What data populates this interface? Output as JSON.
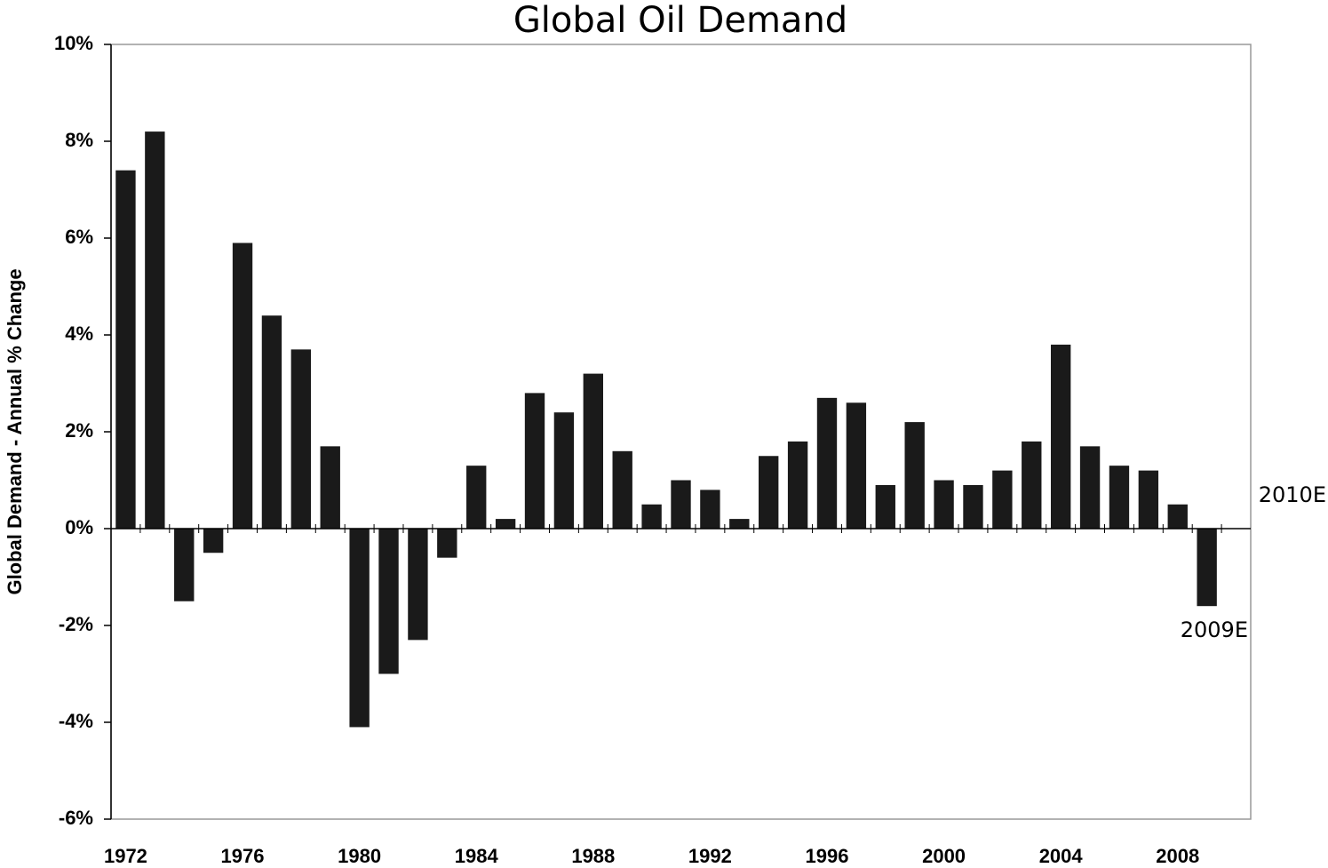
{
  "chart_data": {
    "type": "bar",
    "title": "Global Oil Demand",
    "y_axis_label": "Global Demand - Annual % Change",
    "categories": [
      "1972",
      null,
      null,
      null,
      "1976",
      null,
      null,
      null,
      "1980",
      null,
      null,
      null,
      "1984",
      null,
      null,
      null,
      "1988",
      null,
      null,
      null,
      "1992",
      null,
      null,
      null,
      "1996",
      null,
      null,
      null,
      "2000",
      null,
      null,
      null,
      "2004",
      null,
      null,
      null,
      "2008",
      null,
      null
    ],
    "values": [
      7.4,
      8.2,
      -1.5,
      -0.5,
      5.9,
      4.4,
      3.7,
      1.7,
      -4.1,
      -3.0,
      -2.3,
      -0.6,
      1.3,
      0.2,
      2.8,
      2.4,
      3.2,
      1.6,
      0.5,
      1.0,
      0.8,
      0.2,
      1.5,
      1.8,
      2.7,
      2.6,
      0.9,
      2.2,
      1.0,
      0.9,
      1.2,
      1.8,
      3.8,
      1.7,
      1.3,
      1.2,
      0.5,
      -1.6,
      null
    ],
    "color": "#1a1a1a",
    "ylim": [
      -6,
      10
    ],
    "yticks": [
      {
        "value": -6,
        "label": "-6%"
      },
      {
        "value": -4,
        "label": "-4%"
      },
      {
        "value": -2,
        "label": "-2%"
      },
      {
        "value": 0,
        "label": "0%"
      },
      {
        "value": 2,
        "label": "2%"
      },
      {
        "value": 4,
        "label": "4%"
      },
      {
        "value": 6,
        "label": "6%"
      },
      {
        "value": 8,
        "label": "8%"
      },
      {
        "value": 10,
        "label": "10%"
      }
    ],
    "grid": false,
    "annotations": [
      "2010E",
      "2009E"
    ]
  }
}
